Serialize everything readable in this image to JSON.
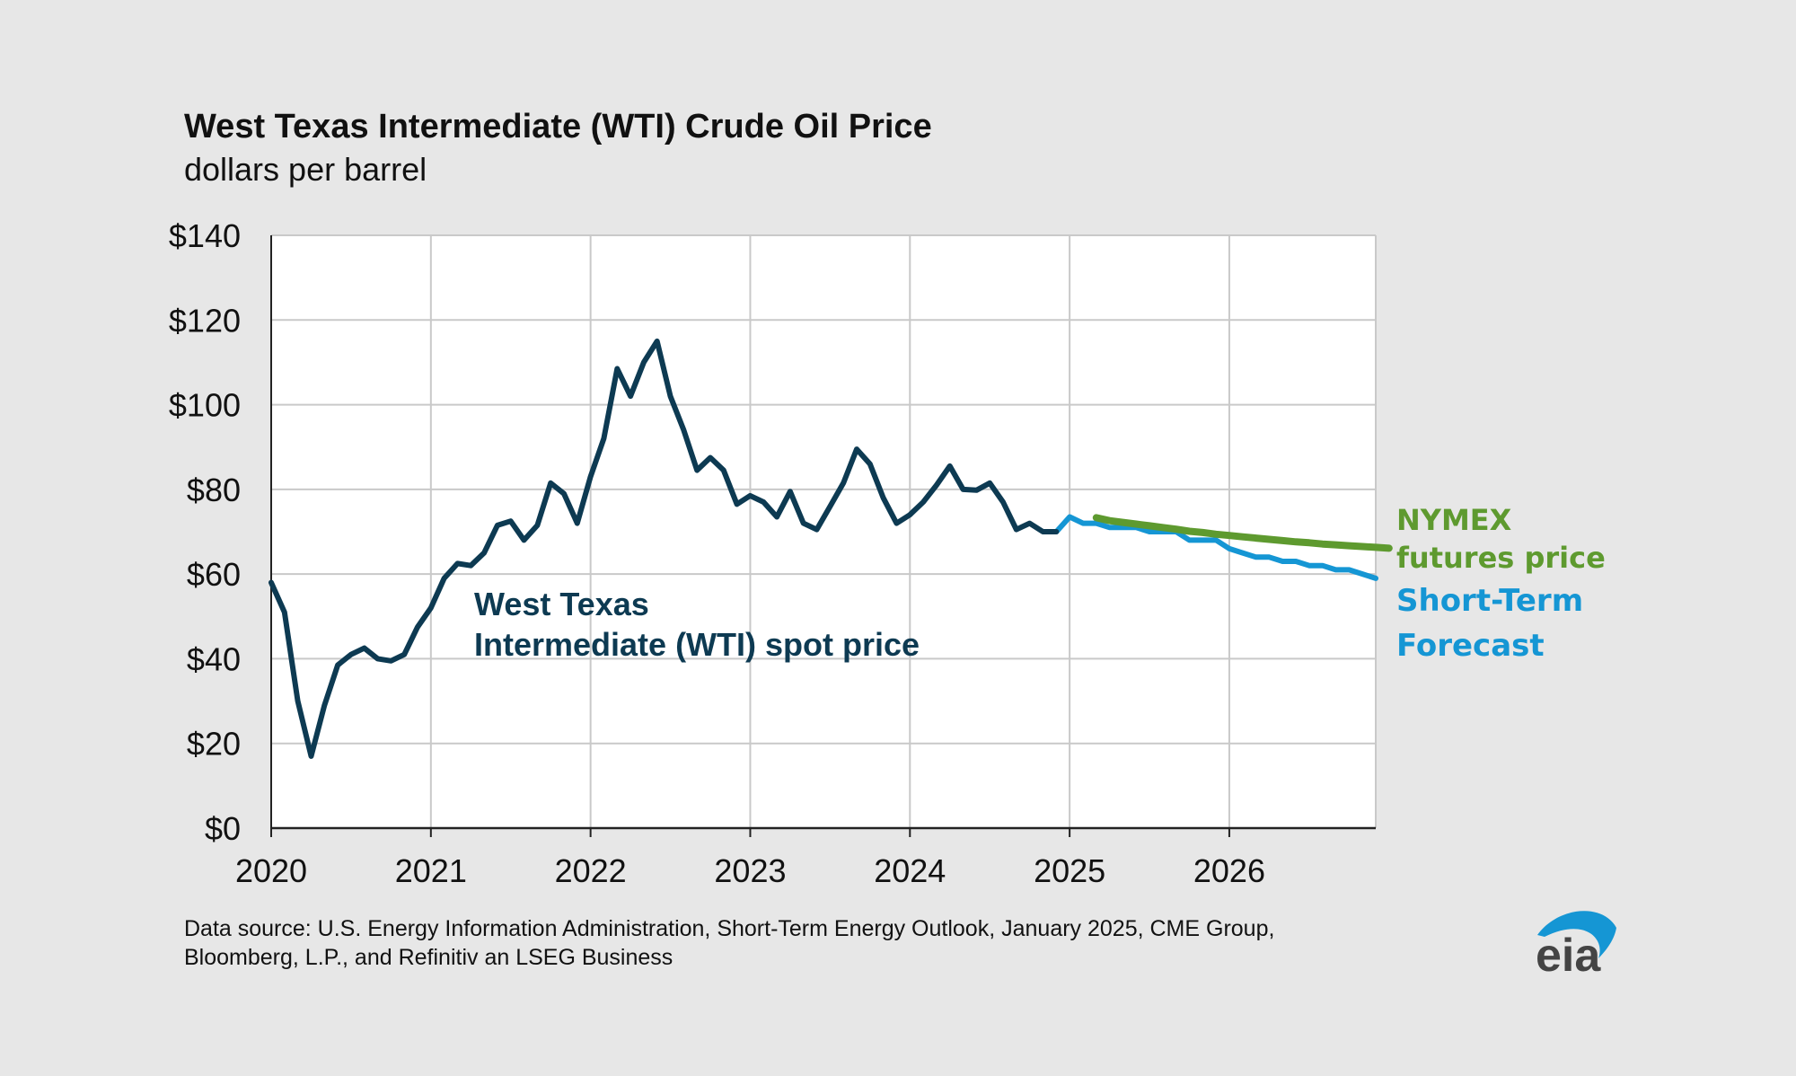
{
  "title": "West Texas Intermediate (WTI) Crude Oil Price",
  "subtitle": "dollars per barrel",
  "source": {
    "line1": "Data source: U.S. Energy Information Administration, Short-Term Energy Outlook, January 2025, CME Group,",
    "line2": "Bloomberg, L.P., and Refinitiv an LSEG Business"
  },
  "logo_text": "eia",
  "colors": {
    "spot": "#0d3a52",
    "forecast": "#1596d4",
    "futures": "#5e9a2f",
    "grid": "#c9c9c9",
    "text": "#111111"
  },
  "chart_data": {
    "type": "line",
    "title": "West Texas Intermediate (WTI) Crude Oil Price",
    "ylabel": "dollars per barrel",
    "xlabel": "",
    "xlim": [
      2020,
      2026.917
    ],
    "ylim": [
      0,
      140
    ],
    "y_ticks": [
      0,
      20,
      40,
      60,
      80,
      100,
      120,
      140
    ],
    "y_tick_labels": [
      "$0",
      "$20",
      "$40",
      "$60",
      "$80",
      "$100",
      "$120",
      "$140"
    ],
    "x_ticks": [
      2020,
      2021,
      2022,
      2023,
      2024,
      2025,
      2026
    ],
    "x_tick_labels": [
      "2020",
      "2021",
      "2022",
      "2023",
      "2024",
      "2025",
      "2026"
    ],
    "grid": true,
    "series": [
      {
        "name": "West Texas Intermediate (WTI) spot price",
        "label_line1": "West Texas",
        "label_line2": "Intermediate (WTI) spot price",
        "x_start": 2020,
        "step": 0.08333,
        "values": [
          58,
          51,
          30,
          17,
          29,
          38.5,
          41,
          42.5,
          40,
          39.5,
          41,
          47.5,
          52,
          59,
          62.5,
          62,
          65,
          71.5,
          72.5,
          68,
          71.5,
          81.5,
          79,
          72,
          83,
          92,
          108.5,
          102,
          110,
          115,
          102,
          94,
          84.5,
          87.5,
          84.5,
          76.5,
          78.5,
          77,
          73.5,
          79.5,
          72,
          70.5,
          76,
          81.5,
          89.5,
          86,
          78,
          72,
          74,
          77,
          81,
          85.5,
          80,
          79.8,
          81.5,
          77,
          70.5,
          72,
          70,
          70
        ]
      },
      {
        "name": "Short-Term Forecast",
        "label_line1": "Short-Term",
        "label_line2": "Forecast",
        "x_start": 2024.917,
        "step": 0.08333,
        "values": [
          70,
          73.5,
          72,
          72,
          71,
          71,
          71,
          70,
          70,
          70,
          68,
          68,
          68,
          66,
          65,
          64,
          64,
          63,
          63,
          62,
          62,
          61,
          61,
          60,
          59
        ]
      },
      {
        "name": "NYMEX futures price",
        "label_line1": "NYMEX",
        "label_line2": "futures price",
        "x_start": 2025.167,
        "step": 0.08333,
        "values": [
          73.3,
          72.6,
          72.2,
          71.8,
          71.4,
          71.0,
          70.6,
          70.1,
          69.8,
          69.4,
          69.1,
          68.8,
          68.5,
          68.2,
          67.9,
          67.6,
          67.4,
          67.1,
          66.9,
          66.7,
          66.5,
          66.3,
          66.1
        ]
      }
    ]
  }
}
